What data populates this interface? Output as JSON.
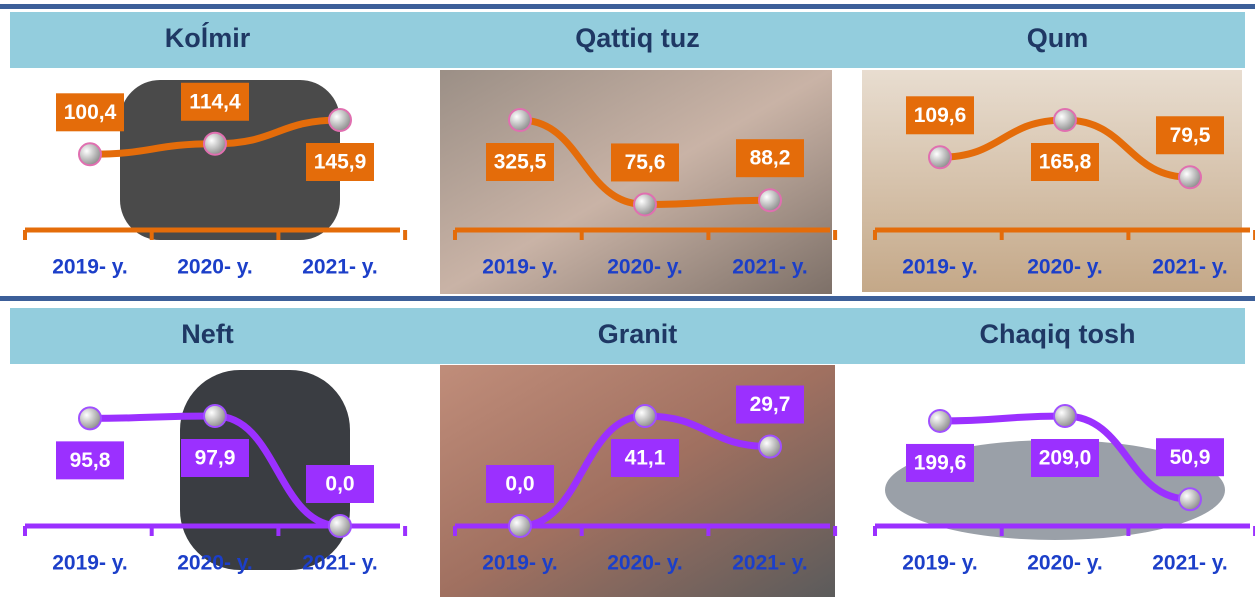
{
  "chart_data": [
    {
      "type": "line",
      "title": "Koĺmir",
      "categories": [
        "2019- y.",
        "2020- y.",
        "2021- y."
      ],
      "values": [
        100.4,
        114.4,
        145.9
      ],
      "value_labels": [
        "100,4",
        "114,4",
        "145,9"
      ],
      "color": "#e46c0a"
    },
    {
      "type": "line",
      "title": "Qattiq tuz",
      "categories": [
        "2019- y.",
        "2020- y.",
        "2021- y."
      ],
      "values": [
        325.5,
        75.6,
        88.2
      ],
      "value_labels": [
        "325,5",
        "75,6",
        "88,2"
      ],
      "color": "#e46c0a"
    },
    {
      "type": "line",
      "title": "Qum",
      "categories": [
        "2019- y.",
        "2020- y.",
        "2021- y."
      ],
      "values": [
        109.6,
        165.8,
        79.5
      ],
      "value_labels": [
        "109,6",
        "165,8",
        "79,5"
      ],
      "color": "#e46c0a"
    },
    {
      "type": "line",
      "title": "Neft",
      "categories": [
        "2019- y.",
        "2020- y.",
        "2021- y."
      ],
      "values": [
        95.8,
        97.9,
        0.0
      ],
      "value_labels": [
        "95,8",
        "97,9",
        "0,0"
      ],
      "color": "#9b30ff"
    },
    {
      "type": "line",
      "title": "Granit",
      "categories": [
        "2019- y.",
        "2020- y.",
        "2021- y."
      ],
      "values": [
        0.0,
        41.1,
        29.7
      ],
      "value_labels": [
        "0,0",
        "41,1",
        "29,7"
      ],
      "color": "#9b30ff"
    },
    {
      "type": "line",
      "title": "Chaqiq tosh",
      "categories": [
        "2019- y.",
        "2020- y.",
        "2021- y."
      ],
      "values": [
        199.6,
        209.0,
        50.9
      ],
      "value_labels": [
        "199,6",
        "209,0",
        "50,9"
      ],
      "color": "#9b30ff"
    }
  ]
}
